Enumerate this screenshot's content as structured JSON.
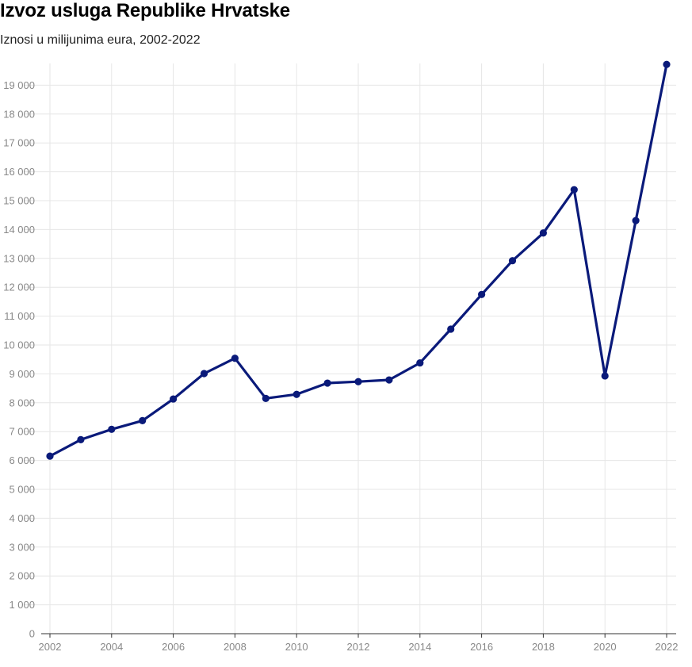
{
  "header": {
    "title": "Izvoz usluga Republike Hrvatske",
    "subtitle": "Iznosi u milijunima eura, 2002-2022"
  },
  "chart_data": {
    "type": "line",
    "title": "Izvoz usluga Republike Hrvatske",
    "subtitle": "Iznosi u milijunima eura, 2002-2022",
    "xlabel": "",
    "ylabel": "",
    "x": [
      2002,
      2003,
      2004,
      2005,
      2006,
      2007,
      2008,
      2009,
      2010,
      2011,
      2012,
      2013,
      2014,
      2015,
      2016,
      2017,
      2018,
      2019,
      2020,
      2021,
      2022
    ],
    "series": [
      {
        "values": [
          6150,
          6720,
          7080,
          7380,
          8130,
          9010,
          9540,
          8150,
          8290,
          8680,
          8730,
          8790,
          9380,
          10550,
          11750,
          12920,
          13880,
          15380,
          8930,
          14310,
          19720
        ]
      }
    ],
    "xlim": [
      2002,
      2022
    ],
    "ylim": [
      0,
      19000
    ],
    "x_ticks": [
      "2002",
      "2004",
      "2006",
      "2008",
      "2010",
      "2012",
      "2014",
      "2016",
      "2018",
      "2020",
      "2022"
    ],
    "y_ticks": [
      "0",
      "1 000",
      "2 000",
      "3 000",
      "4 000",
      "5 000",
      "6 000",
      "7 000",
      "8 000",
      "9 000",
      "10 000",
      "11 000",
      "12 000",
      "13 000",
      "14 000",
      "15 000",
      "16 000",
      "17 000",
      "18 000",
      "19 000"
    ],
    "grid": true,
    "legend": "none",
    "colors": {
      "line": "#0a1a7a",
      "grid": "#e6e6e6",
      "axis": "#333333",
      "tick_text": "#888888"
    }
  }
}
